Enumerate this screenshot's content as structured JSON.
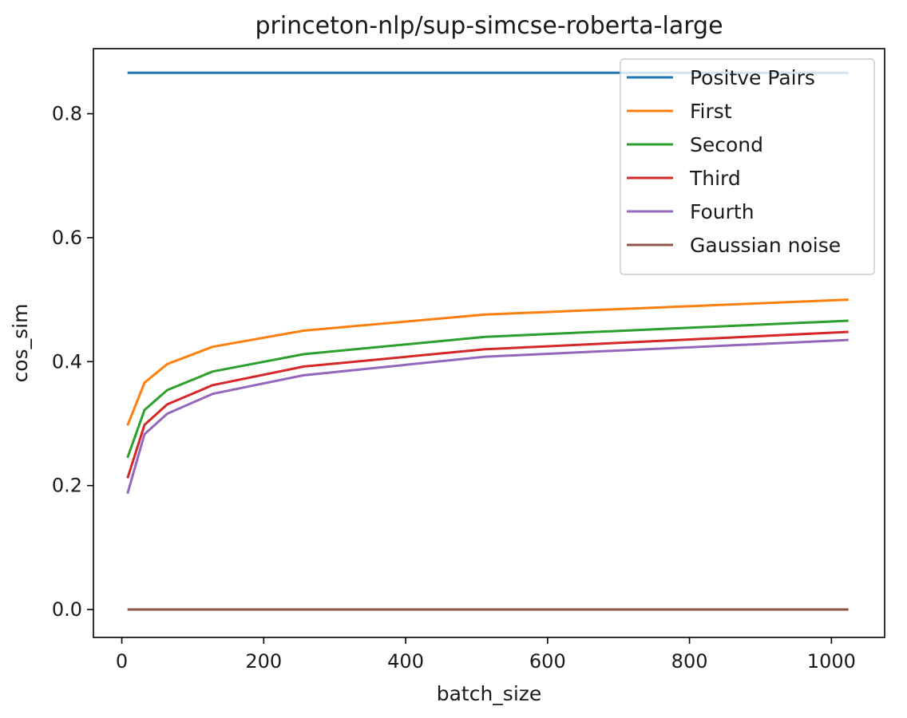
{
  "chart_data": {
    "type": "line",
    "title": "princeton-nlp/sup-simcse-roberta-large",
    "xlabel": "batch_size",
    "ylabel": "cos_sim",
    "xlim": [
      -40,
      1075
    ],
    "ylim": [
      -0.045,
      0.905
    ],
    "xticks": [
      0,
      200,
      400,
      600,
      800,
      1000
    ],
    "yticks": [
      0.0,
      0.2,
      0.4,
      0.6,
      0.8
    ],
    "grid": false,
    "legend_position": "top-right",
    "x": [
      8,
      32,
      64,
      128,
      256,
      512,
      1024
    ],
    "series": [
      {
        "name": "Positve Pairs",
        "color": "#1f77b4",
        "values": [
          0.866,
          0.866,
          0.866,
          0.866,
          0.866,
          0.866,
          0.866
        ]
      },
      {
        "name": "First",
        "color": "#ff7f0e",
        "values": [
          0.297,
          0.366,
          0.396,
          0.424,
          0.45,
          0.476,
          0.5
        ]
      },
      {
        "name": "Second",
        "color": "#2ca02c",
        "values": [
          0.245,
          0.322,
          0.354,
          0.384,
          0.412,
          0.44,
          0.466
        ]
      },
      {
        "name": "Third",
        "color": "#d62728",
        "values": [
          0.212,
          0.298,
          0.331,
          0.362,
          0.392,
          0.42,
          0.448
        ]
      },
      {
        "name": "Fourth",
        "color": "#9467bd",
        "values": [
          0.187,
          0.283,
          0.316,
          0.348,
          0.378,
          0.408,
          0.435
        ]
      },
      {
        "name": "Gaussian noise",
        "color": "#8c564b",
        "values": [
          0.0,
          0.0,
          0.0,
          0.0,
          0.0,
          0.0,
          0.0
        ]
      }
    ]
  }
}
